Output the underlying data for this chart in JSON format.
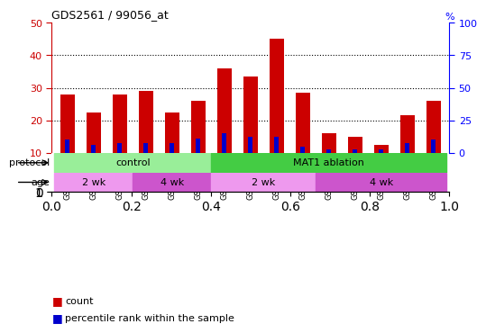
{
  "title": "GDS2561 / 99056_at",
  "samples": [
    "GSM154150",
    "GSM154151",
    "GSM154152",
    "GSM154142",
    "GSM154143",
    "GSM154144",
    "GSM154153",
    "GSM154154",
    "GSM154155",
    "GSM154156",
    "GSM154145",
    "GSM154146",
    "GSM154147",
    "GSM154148",
    "GSM154149"
  ],
  "count_values": [
    28,
    22.5,
    28,
    29,
    22.5,
    26,
    36,
    33.5,
    45,
    28.5,
    16,
    15,
    12.5,
    21.5,
    26
  ],
  "percentile_values": [
    14,
    12.5,
    13,
    13,
    13,
    14.5,
    16,
    15,
    15,
    12,
    11,
    11,
    11,
    13,
    14
  ],
  "bar_bottom": 10,
  "red_color": "#CC0000",
  "blue_color": "#0000CC",
  "ylim_left": [
    10,
    50
  ],
  "ylim_right": [
    0,
    100
  ],
  "yticks_left": [
    10,
    20,
    30,
    40,
    50
  ],
  "yticks_right": [
    0,
    25,
    50,
    75,
    100
  ],
  "protocol_groups": [
    {
      "label": "control",
      "start": 0,
      "end": 5,
      "color": "#99EE99"
    },
    {
      "label": "MAT1 ablation",
      "start": 6,
      "end": 14,
      "color": "#44CC44"
    }
  ],
  "age_groups": [
    {
      "label": "2 wk",
      "start": 0,
      "end": 2,
      "color": "#EE99EE"
    },
    {
      "label": "4 wk",
      "start": 3,
      "end": 5,
      "color": "#CC55CC"
    },
    {
      "label": "2 wk",
      "start": 6,
      "end": 9,
      "color": "#EE99EE"
    },
    {
      "label": "4 wk",
      "start": 10,
      "end": 14,
      "color": "#CC55CC"
    }
  ],
  "legend_count_label": "count",
  "legend_pct_label": "percentile rank within the sample",
  "xtick_bg_color": "#BBBBBB",
  "plot_bg": "#FFFFFF"
}
